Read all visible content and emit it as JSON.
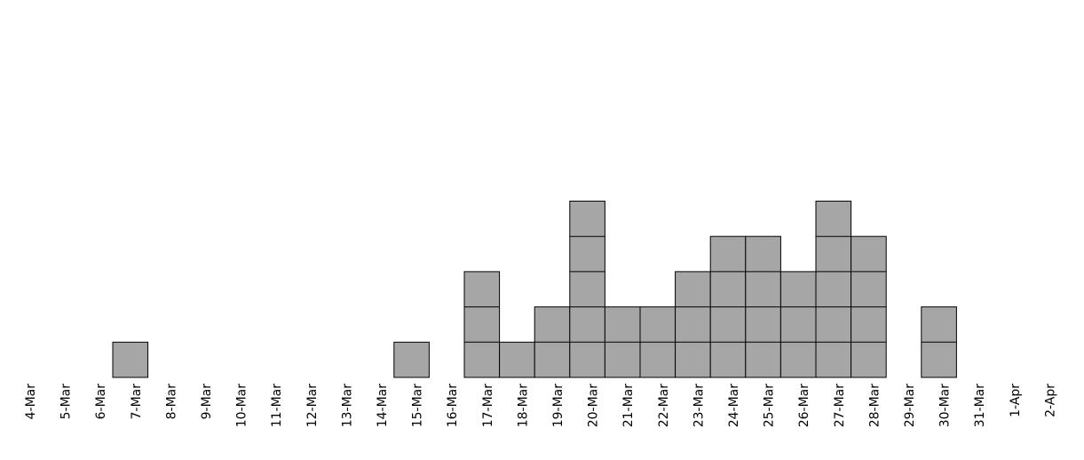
{
  "chart_data": {
    "type": "bar",
    "categories": [
      "4-Mar",
      "5-Mar",
      "6-Mar",
      "7-Mar",
      "8-Mar",
      "9-Mar",
      "10-Mar",
      "11-Mar",
      "12-Mar",
      "13-Mar",
      "14-Mar",
      "15-Mar",
      "16-Mar",
      "17-Mar",
      "18-Mar",
      "19-Mar",
      "20-Mar",
      "21-Mar",
      "22-Mar",
      "23-Mar",
      "24-Mar",
      "25-Mar",
      "26-Mar",
      "27-Mar",
      "28-Mar",
      "29-Mar",
      "30-Mar",
      "31-Mar",
      "1-Apr",
      "2-Apr"
    ],
    "values": [
      0,
      0,
      0,
      1,
      0,
      0,
      0,
      0,
      0,
      0,
      0,
      1,
      0,
      3,
      1,
      2,
      5,
      2,
      2,
      3,
      4,
      4,
      3,
      5,
      4,
      0,
      2,
      0,
      0,
      0
    ],
    "color": "#a6a6a6"
  }
}
